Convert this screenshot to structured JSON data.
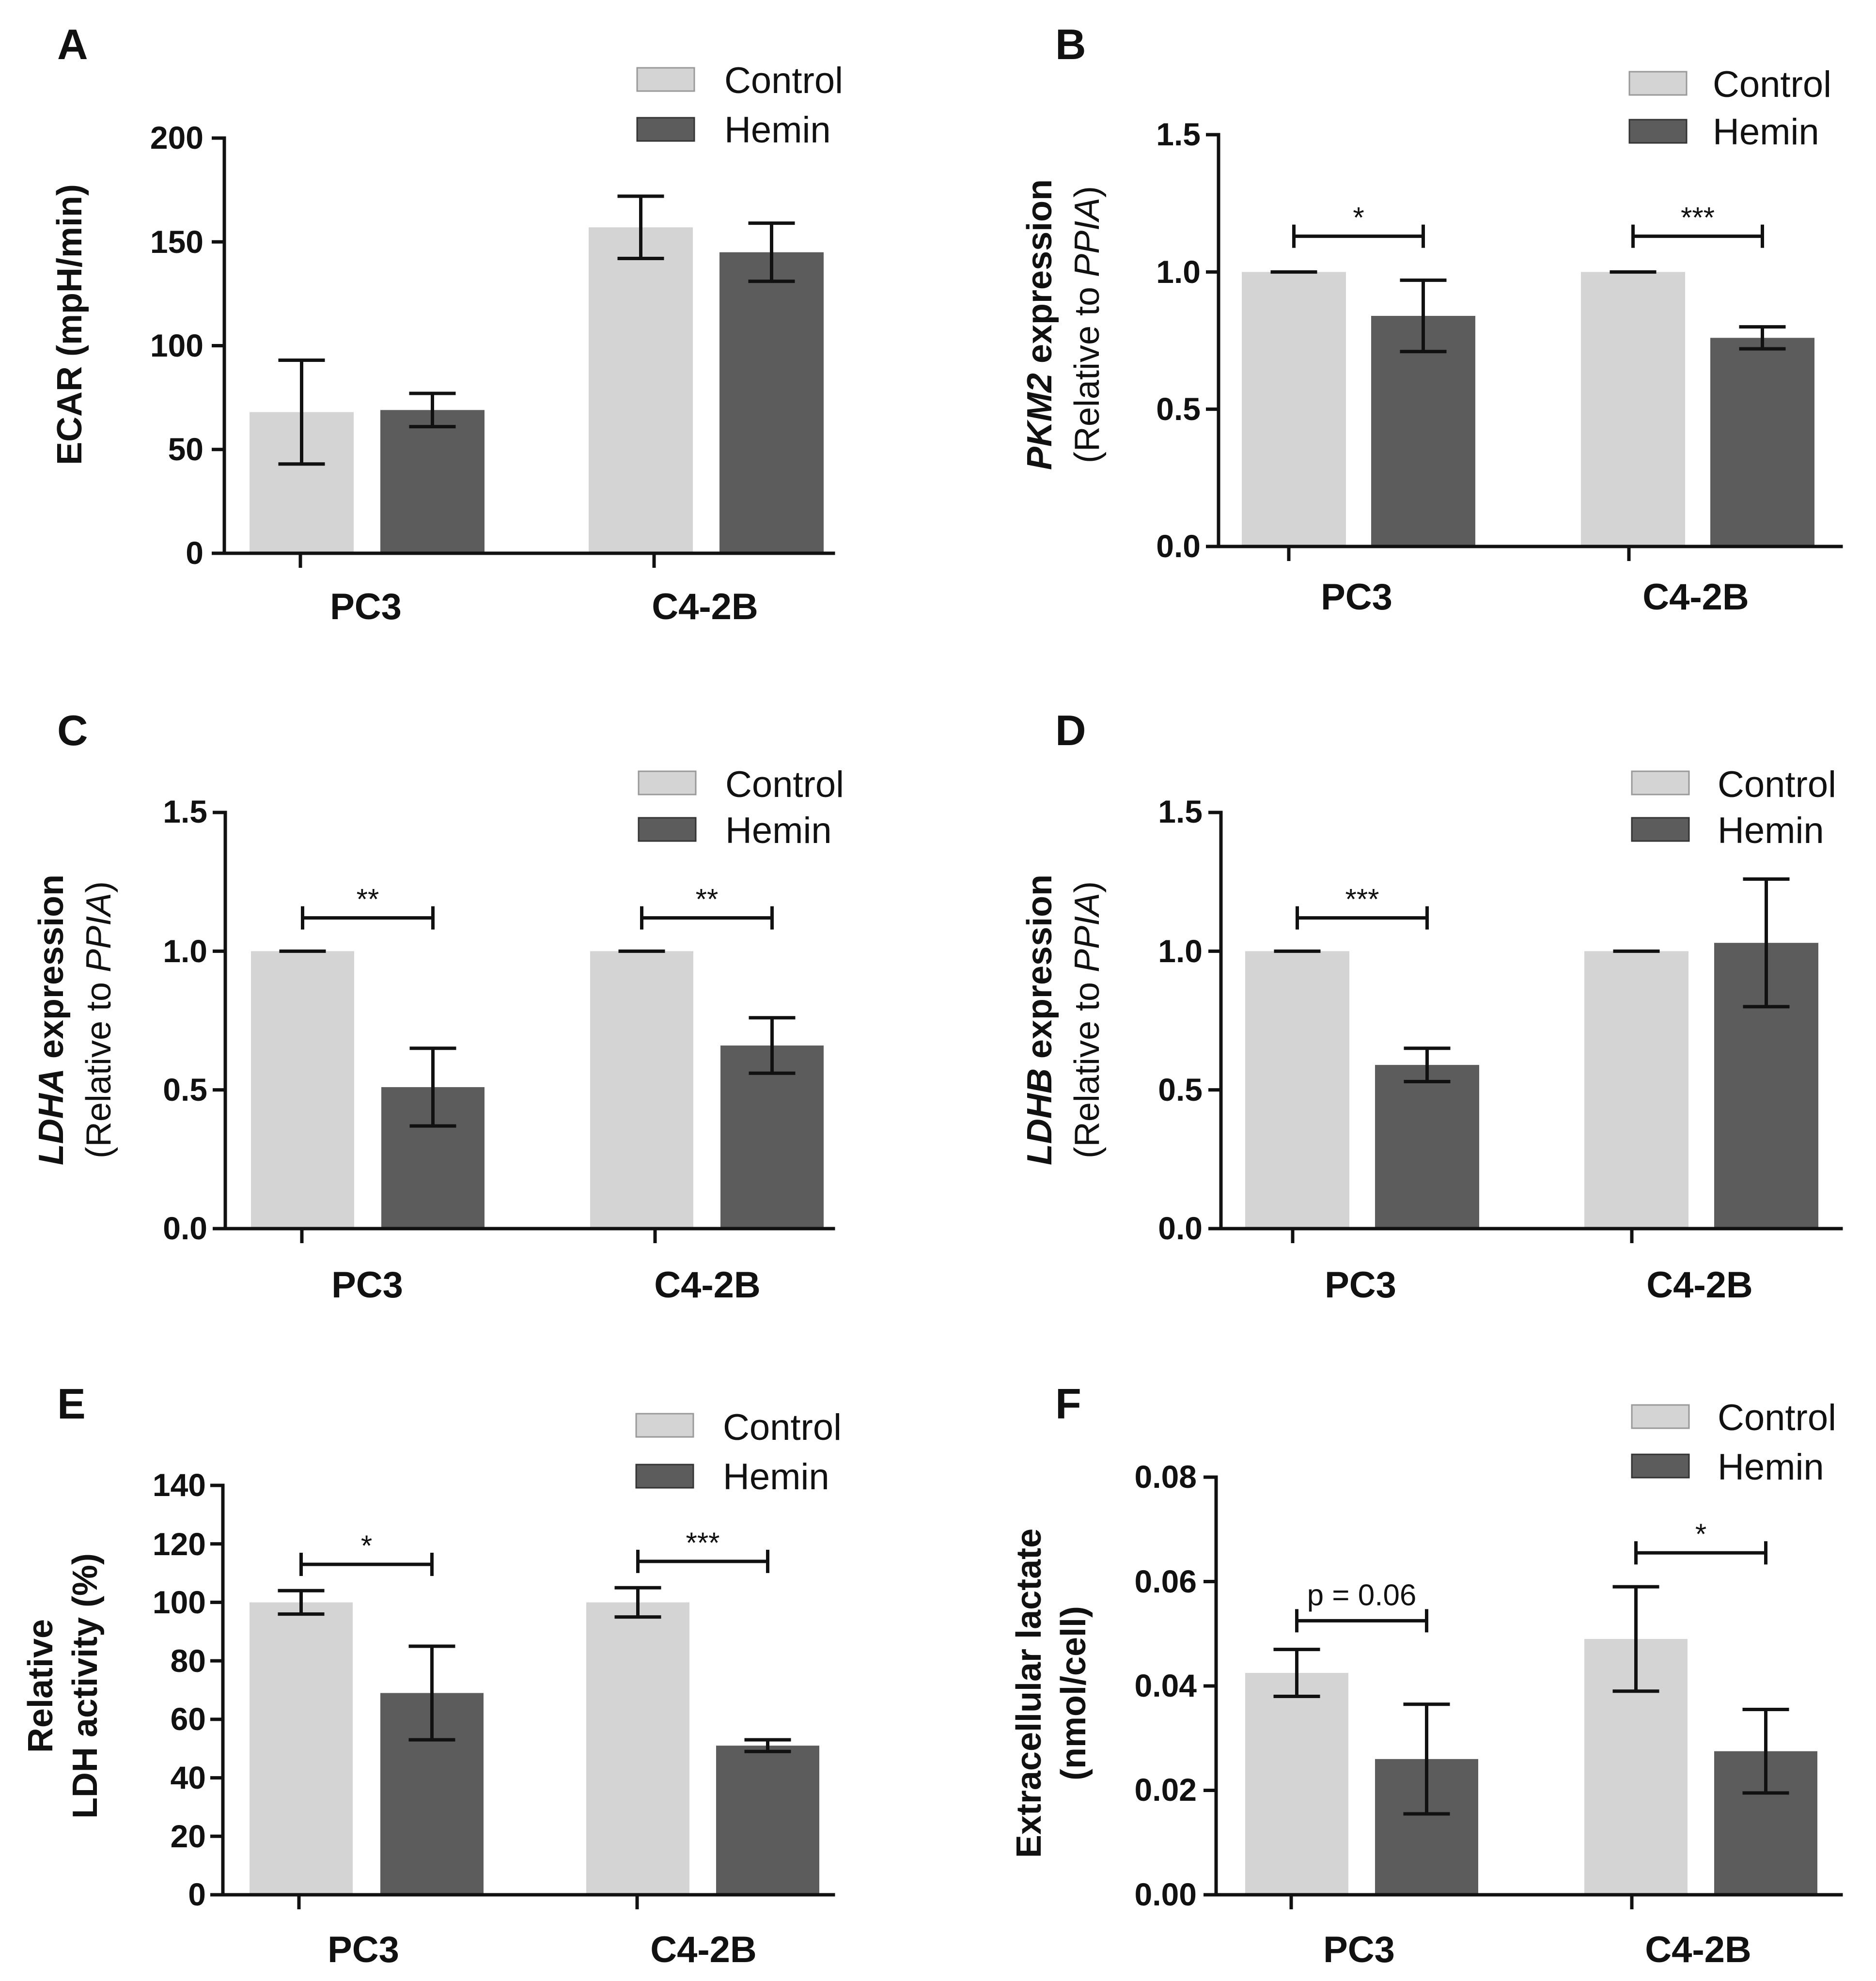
{
  "colors": {
    "control": "#d4d4d4",
    "hemin": "#5c5c5c",
    "axis": "#111111"
  },
  "chart_data": [
    {
      "panel": "A",
      "type": "bar",
      "categories": [
        "PC3",
        "C4-2B"
      ],
      "series": [
        {
          "name": "Control",
          "values": [
            68,
            157
          ],
          "errors": [
            25,
            15
          ]
        },
        {
          "name": "Hemin",
          "values": [
            69,
            145
          ],
          "errors": [
            8,
            14
          ]
        }
      ],
      "ylabel": "ECAR (mpH/min)",
      "ylim": [
        0,
        200
      ],
      "yticks": [
        "0",
        "50",
        "100",
        "150",
        "200"
      ],
      "significance": []
    },
    {
      "panel": "B",
      "type": "bar",
      "categories": [
        "PC3",
        "C4-2B"
      ],
      "series": [
        {
          "name": "Control",
          "values": [
            1.0,
            1.0
          ],
          "errors": [
            0.0,
            0.0
          ]
        },
        {
          "name": "Hemin",
          "values": [
            0.84,
            0.76
          ],
          "errors": [
            0.13,
            0.04
          ]
        }
      ],
      "ylabel_italic": "PKM2",
      "ylabel_rest": " expression",
      "ylabel_line2_prefix": "(Relative to ",
      "ylabel_line2_italic": "PPIA",
      "ylabel_line2_suffix": ")",
      "ylim": [
        0,
        1.5
      ],
      "yticks": [
        "0.0",
        "0.5",
        "1.0",
        "1.5"
      ],
      "significance": [
        {
          "label": "*",
          "y": 1.13
        },
        {
          "label": "***",
          "y": 1.13
        }
      ]
    },
    {
      "panel": "C",
      "type": "bar",
      "categories": [
        "PC3",
        "C4-2B"
      ],
      "series": [
        {
          "name": "Control",
          "values": [
            1.0,
            1.0
          ],
          "errors": [
            0.0,
            0.0
          ]
        },
        {
          "name": "Hemin",
          "values": [
            0.51,
            0.66
          ],
          "errors": [
            0.14,
            0.1
          ]
        }
      ],
      "ylabel_italic": "LDHA",
      "ylabel_rest": " expression",
      "ylabel_line2_prefix": "(Relative to ",
      "ylabel_line2_italic": "PPIA",
      "ylabel_line2_suffix": ")",
      "ylim": [
        0,
        1.5
      ],
      "yticks": [
        "0.0",
        "0.5",
        "1.0",
        "1.5"
      ],
      "significance": [
        {
          "label": "**",
          "y": 1.12
        },
        {
          "label": "**",
          "y": 1.12
        }
      ]
    },
    {
      "panel": "D",
      "type": "bar",
      "categories": [
        "PC3",
        "C4-2B"
      ],
      "series": [
        {
          "name": "Control",
          "values": [
            1.0,
            1.0
          ],
          "errors": [
            0.0,
            0.0
          ]
        },
        {
          "name": "Hemin",
          "values": [
            0.59,
            1.03
          ],
          "errors": [
            0.06,
            0.23
          ]
        }
      ],
      "ylabel_italic": "LDHB",
      "ylabel_rest": " expression",
      "ylabel_line2_prefix": "(Relative to ",
      "ylabel_line2_italic": "PPIA",
      "ylabel_line2_suffix": ")",
      "ylim": [
        0,
        1.5
      ],
      "yticks": [
        "0.0",
        "0.5",
        "1.0",
        "1.5"
      ],
      "significance": [
        {
          "label": "***",
          "y": 1.12
        }
      ]
    },
    {
      "panel": "E",
      "type": "bar",
      "categories": [
        "PC3",
        "C4-2B"
      ],
      "series": [
        {
          "name": "Control",
          "values": [
            100,
            100
          ],
          "errors": [
            4,
            5
          ]
        },
        {
          "name": "Hemin",
          "values": [
            69,
            51
          ],
          "errors": [
            16,
            2
          ]
        }
      ],
      "ylabel_line1": "Relative",
      "ylabel_line2": "LDH activity (%)",
      "ylim": [
        0,
        140
      ],
      "yticks": [
        "0",
        "20",
        "40",
        "60",
        "80",
        "100",
        "120",
        "140"
      ],
      "significance": [
        {
          "label": "*",
          "y": 113
        },
        {
          "label": "***",
          "y": 114
        }
      ]
    },
    {
      "panel": "F",
      "type": "bar",
      "categories": [
        "PC3",
        "C4-2B"
      ],
      "series": [
        {
          "name": "Control",
          "values": [
            0.0425,
            0.049
          ],
          "errors": [
            0.0045,
            0.01
          ]
        },
        {
          "name": "Hemin",
          "values": [
            0.026,
            0.0275
          ],
          "errors": [
            0.0105,
            0.008
          ]
        }
      ],
      "ylabel_line1": "Extracellular lactate",
      "ylabel_line2": "(nmol/cell)",
      "ylim": [
        0,
        0.08
      ],
      "yticks": [
        "0.00",
        "0.02",
        "0.04",
        "0.06",
        "0.08"
      ],
      "significance": [
        {
          "label": "p = 0.06",
          "y": 0.0525,
          "plain": true
        },
        {
          "label": "*",
          "y": 0.0655
        }
      ]
    }
  ]
}
